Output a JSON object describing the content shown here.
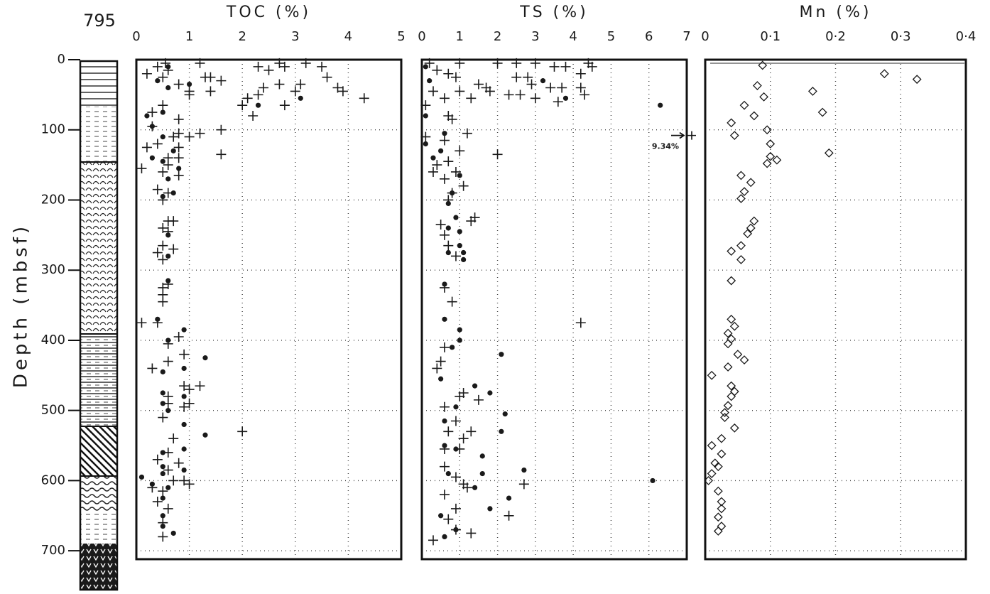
{
  "chart_data": [
    {
      "type": "column",
      "title": "795",
      "ylabel": "Depth (mbsf)",
      "ylim": [
        0,
        712
      ],
      "yticks": [
        0,
        100,
        200,
        300,
        400,
        500,
        600,
        700
      ]
    },
    {
      "type": "scatter",
      "title": "TOC (%)",
      "xlim": [
        0,
        5
      ],
      "xticks": [
        0,
        1,
        2,
        3,
        4,
        5
      ],
      "ylim": [
        0,
        712
      ],
      "grid": true,
      "series": [
        {
          "marker": "plus",
          "color": "#1a1a1a",
          "x": [
            0.55,
            1.2,
            2.3,
            2.7,
            3.2,
            3.5,
            2.5,
            2.8,
            0.6,
            0.4,
            1.4,
            1.6,
            1.3,
            0.2,
            3.6,
            0.5,
            2.4,
            2.7,
            3.1,
            3.0,
            3.8,
            3.9,
            0.8,
            1.0,
            1.4,
            2.3,
            2.1,
            1.0,
            4.3,
            2.0,
            2.8,
            2.2,
            0.5,
            0.3,
            0.8,
            0.3,
            1.6,
            1.2,
            0.8,
            1.0,
            1.6,
            0.7,
            0.4,
            0.8,
            0.2,
            0.6,
            0.8,
            0.1,
            0.5,
            0.6,
            0.8,
            0.4,
            0.6,
            0.5,
            0.6,
            0.7,
            0.5,
            0.6,
            0.5,
            0.7,
            0.4,
            0.5,
            0.6,
            0.5,
            0.5,
            0.5,
            0.1,
            0.4,
            0.8,
            0.6,
            0.3,
            0.6,
            0.9,
            0.9,
            1.0,
            1.2,
            1.0,
            0.6,
            0.6,
            0.9,
            0.5,
            2.0,
            0.7,
            0.6,
            0.4,
            0.8,
            0.6,
            0.9,
            0.7,
            1.0,
            0.3,
            0.5,
            0.4,
            0.6,
            0.5,
            0.5
          ],
          "y": [
            5,
            5,
            10,
            5,
            5,
            10,
            15,
            10,
            15,
            10,
            25,
            30,
            25,
            20,
            25,
            25,
            40,
            35,
            35,
            45,
            40,
            45,
            35,
            45,
            45,
            50,
            55,
            50,
            55,
            65,
            65,
            80,
            65,
            75,
            85,
            95,
            100,
            105,
            105,
            110,
            135,
            110,
            120,
            125,
            125,
            140,
            140,
            155,
            160,
            150,
            165,
            185,
            190,
            200,
            230,
            230,
            240,
            245,
            265,
            270,
            275,
            285,
            320,
            325,
            335,
            345,
            375,
            375,
            395,
            405,
            440,
            430,
            420,
            465,
            470,
            465,
            490,
            480,
            490,
            495,
            510,
            530,
            540,
            560,
            570,
            575,
            585,
            600,
            600,
            605,
            610,
            615,
            630,
            640,
            660,
            680
          ]
        },
        {
          "marker": "dot",
          "color": "#1a1a1a",
          "x": [
            0.6,
            0.4,
            1.0,
            0.6,
            2.3,
            3.1,
            0.5,
            0.2,
            0.3,
            0.5,
            0.7,
            0.3,
            0.5,
            0.8,
            0.6,
            0.7,
            0.5,
            0.6,
            0.6,
            0.6,
            0.4,
            0.9,
            0.6,
            1.3,
            0.9,
            0.5,
            0.5,
            0.5,
            0.9,
            0.6,
            1.3,
            0.9,
            0.9,
            0.5,
            0.5,
            0.5,
            0.9,
            0.1,
            0.3,
            0.6,
            0.5,
            0.5,
            0.5,
            0.7
          ],
          "y": [
            10,
            30,
            35,
            40,
            65,
            55,
            75,
            80,
            95,
            110,
            130,
            140,
            145,
            155,
            170,
            190,
            195,
            250,
            280,
            315,
            370,
            385,
            400,
            425,
            440,
            445,
            475,
            490,
            480,
            500,
            535,
            520,
            555,
            560,
            580,
            590,
            585,
            595,
            605,
            610,
            625,
            650,
            665,
            675
          ]
        }
      ]
    },
    {
      "type": "scatter",
      "title": "TS (%)",
      "xlim": [
        0,
        7
      ],
      "xticks": [
        0,
        1,
        2,
        3,
        4,
        5,
        6,
        7
      ],
      "ylim": [
        0,
        712
      ],
      "grid": true,
      "annotation": {
        "text": "9.34%",
        "x": 9.34,
        "y": 108
      },
      "series": [
        {
          "marker": "plus",
          "color": "#1a1a1a",
          "x": [
            0.2,
            1.0,
            2.0,
            2.5,
            3.0,
            3.5,
            3.8,
            4.4,
            0.4,
            0.7,
            0.9,
            2.5,
            2.8,
            4.2,
            4.5,
            1.5,
            1.7,
            2.9,
            3.4,
            3.7,
            4.2,
            1.0,
            0.3,
            0.6,
            1.3,
            1.8,
            2.3,
            2.6,
            3.0,
            3.6,
            4.3,
            0.1,
            0.7,
            0.8,
            1.2,
            0.1,
            0.6,
            1.0,
            2.0,
            0.4,
            0.7,
            0.3,
            0.9,
            0.6,
            1.1,
            0.8,
            0.7,
            1.4,
            1.3,
            0.5,
            0.6,
            0.7,
            0.9,
            0.6,
            0.8,
            4.2,
            0.6,
            0.5,
            0.4,
            1.1,
            1.0,
            0.6,
            1.5,
            0.9,
            1.3,
            0.7,
            1.1,
            1.0,
            0.6,
            0.6,
            0.9,
            1.1,
            1.2,
            2.7,
            0.6,
            0.9,
            2.3,
            0.7,
            0.3,
            1.3,
            0.9
          ],
          "y": [
            5,
            5,
            5,
            5,
            5,
            10,
            10,
            5,
            15,
            20,
            25,
            25,
            25,
            20,
            10,
            35,
            40,
            35,
            40,
            40,
            40,
            45,
            45,
            55,
            55,
            45,
            50,
            50,
            55,
            60,
            50,
            65,
            80,
            85,
            105,
            110,
            115,
            130,
            135,
            150,
            145,
            160,
            160,
            170,
            180,
            190,
            200,
            225,
            230,
            235,
            250,
            265,
            280,
            325,
            345,
            375,
            410,
            430,
            440,
            475,
            480,
            495,
            485,
            515,
            530,
            530,
            540,
            555,
            555,
            580,
            595,
            605,
            610,
            605,
            620,
            640,
            650,
            655,
            685,
            675,
            670
          ]
        },
        {
          "marker": "dot",
          "color": "#1a1a1a",
          "x": [
            0.1,
            0.2,
            3.2,
            3.8,
            6.3,
            0.1,
            0.6,
            0.1,
            0.5,
            0.3,
            1.0,
            0.8,
            0.7,
            0.9,
            0.7,
            1.0,
            1.0,
            0.7,
            1.1,
            1.1,
            0.6,
            0.6,
            1.0,
            1.0,
            0.8,
            2.1,
            0.5,
            1.4,
            1.8,
            0.9,
            2.2,
            0.6,
            2.1,
            0.6,
            0.9,
            1.6,
            0.7,
            1.6,
            2.7,
            6.1,
            1.4,
            2.3,
            1.8,
            0.5,
            0.6,
            0.9
          ],
          "y": [
            10,
            30,
            30,
            55,
            65,
            80,
            105,
            120,
            130,
            140,
            165,
            190,
            205,
            225,
            240,
            245,
            265,
            275,
            275,
            285,
            320,
            370,
            385,
            400,
            410,
            420,
            455,
            465,
            475,
            495,
            505,
            515,
            530,
            550,
            555,
            565,
            590,
            590,
            585,
            600,
            610,
            625,
            640,
            650,
            680,
            670
          ]
        }
      ]
    },
    {
      "type": "scatter",
      "title": "Mn (%)",
      "xlim": [
        0,
        0.4
      ],
      "xticks": [
        0,
        {
          "value": 0.1,
          "label": "0·1"
        },
        {
          "value": 0.2,
          "label": "0·2"
        },
        {
          "value": 0.3,
          "label": "0·3"
        },
        {
          "value": 0.4,
          "label": "0·4"
        }
      ],
      "ylim": [
        0,
        712
      ],
      "grid": true,
      "series": [
        {
          "marker": "diamond",
          "color": "#1a1a1a",
          "x": [
            0.088,
            0.275,
            0.325,
            0.08,
            0.165,
            0.09,
            0.06,
            0.18,
            0.075,
            0.04,
            0.095,
            0.045,
            0.1,
            0.19,
            0.1,
            0.11,
            0.095,
            0.055,
            0.07,
            0.06,
            0.055,
            0.075,
            0.07,
            0.065,
            0.055,
            0.04,
            0.055,
            0.04,
            0.04,
            0.045,
            0.035,
            0.04,
            0.035,
            0.05,
            0.06,
            0.035,
            0.01,
            0.04,
            0.045,
            0.04,
            0.035,
            0.03,
            0.03,
            0.045,
            0.025,
            0.01,
            0.025,
            0.015,
            0.02,
            0.01,
            0.005,
            0.02,
            0.025,
            0.025,
            0.02,
            0.025,
            0.02
          ],
          "y": [
            8,
            20,
            28,
            37,
            45,
            53,
            65,
            75,
            80,
            90,
            100,
            108,
            120,
            133,
            138,
            143,
            148,
            165,
            175,
            188,
            198,
            230,
            240,
            248,
            265,
            273,
            285,
            315,
            370,
            380,
            390,
            398,
            405,
            420,
            428,
            438,
            450,
            465,
            473,
            480,
            493,
            503,
            510,
            525,
            540,
            550,
            562,
            575,
            580,
            590,
            600,
            615,
            630,
            640,
            652,
            665,
            672
          ]
        }
      ]
    }
  ]
}
